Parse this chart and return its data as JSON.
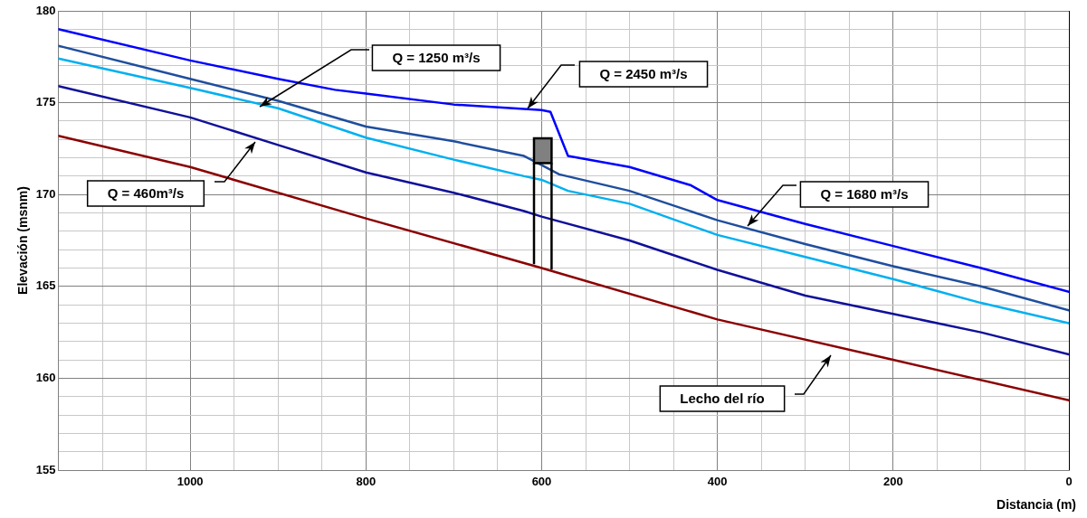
{
  "chart_data": {
    "type": "line",
    "xlabel": "Distancia (m)",
    "ylabel": "Elevación (msnm)",
    "xlim": [
      1150,
      0
    ],
    "xticks": [
      0,
      {
        "value": 50,
        "label": null
      },
      {
        "value": 100,
        "label": null
      },
      {
        "value": 150,
        "label": null
      },
      200,
      {
        "value": 250,
        "label": null
      },
      {
        "value": 300,
        "label": null
      },
      {
        "value": 350,
        "label": null
      },
      400,
      {
        "value": 450,
        "label": null
      },
      {
        "value": 500,
        "label": null
      },
      {
        "value": 550,
        "label": null
      },
      600,
      {
        "value": 650,
        "label": null
      },
      {
        "value": 700,
        "label": null
      },
      {
        "value": 750,
        "label": null
      },
      800,
      {
        "value": 850,
        "label": null
      },
      {
        "value": 900,
        "label": null
      },
      {
        "value": 950,
        "label": null
      },
      1000,
      {
        "value": 1050,
        "label": null
      },
      {
        "value": 1100,
        "label": null
      }
    ],
    "ylim": [
      155,
      180
    ],
    "yticks": [
      155,
      {
        "value": 156,
        "label": null
      },
      {
        "value": 157,
        "label": null
      },
      {
        "value": 158,
        "label": null
      },
      {
        "value": 159,
        "label": null
      },
      160,
      {
        "value": 161,
        "label": null
      },
      {
        "value": 162,
        "label": null
      },
      {
        "value": 163,
        "label": null
      },
      {
        "value": 164,
        "label": null
      },
      165,
      {
        "value": 166,
        "label": null
      },
      {
        "value": 167,
        "label": null
      },
      {
        "value": 168,
        "label": null
      },
      {
        "value": 169,
        "label": null
      },
      170,
      {
        "value": 171,
        "label": null
      },
      {
        "value": 172,
        "label": null
      },
      {
        "value": 173,
        "label": null
      },
      {
        "value": 174,
        "label": null
      },
      175,
      {
        "value": 176,
        "label": null
      },
      {
        "value": 177,
        "label": null
      },
      {
        "value": 178,
        "label": null
      },
      {
        "value": 179,
        "label": null
      },
      180
    ],
    "grid": true,
    "legend": false,
    "marker": "none",
    "series": [
      {
        "color": "#0000ff",
        "x": [
          1150,
          1000,
          900,
          835,
          800,
          700,
          600,
          590,
          570,
          500,
          430,
          400,
          300,
          200,
          100,
          0
        ],
        "values": [
          179.0,
          177.3,
          176.3,
          175.7,
          175.5,
          174.9,
          174.6,
          174.5,
          172.1,
          171.5,
          170.5,
          169.7,
          168.4,
          167.2,
          166.0,
          164.7
        ]
      },
      {
        "color": "#1f4e9e",
        "x": [
          1150,
          1000,
          900,
          800,
          700,
          640,
          620,
          600,
          580,
          500,
          400,
          300,
          200,
          100,
          0
        ],
        "values": [
          178.1,
          176.3,
          175.1,
          173.7,
          172.9,
          172.3,
          172.1,
          171.6,
          171.1,
          170.2,
          168.6,
          167.3,
          166.1,
          165.0,
          163.7
        ]
      },
      {
        "color": "#00b0f0",
        "x": [
          1150,
          1000,
          900,
          800,
          700,
          620,
          600,
          570,
          500,
          400,
          300,
          200,
          100,
          0
        ],
        "values": [
          177.4,
          175.8,
          174.7,
          173.1,
          171.9,
          171.0,
          170.8,
          170.2,
          169.5,
          167.8,
          166.6,
          165.4,
          164.1,
          163.0
        ]
      },
      {
        "color": "#10109a",
        "x": [
          1150,
          1000,
          900,
          800,
          700,
          620,
          600,
          500,
          400,
          300,
          200,
          100,
          0
        ],
        "values": [
          175.9,
          174.2,
          172.7,
          171.2,
          170.1,
          169.1,
          168.8,
          167.5,
          165.9,
          164.5,
          163.5,
          162.5,
          161.3
        ]
      },
      {
        "color": "#8b0000",
        "x": [
          1150,
          1000,
          800,
          600,
          400,
          200,
          0
        ],
        "values": [
          173.2,
          171.5,
          168.7,
          166.0,
          163.2,
          161.0,
          158.8
        ]
      }
    ],
    "annotations": [
      "Q = 1250 m³/s",
      "Q = 2450 m³/s",
      "Q = 1680 m³/s",
      "Q = 460m³/s",
      "Lecho del río"
    ]
  }
}
